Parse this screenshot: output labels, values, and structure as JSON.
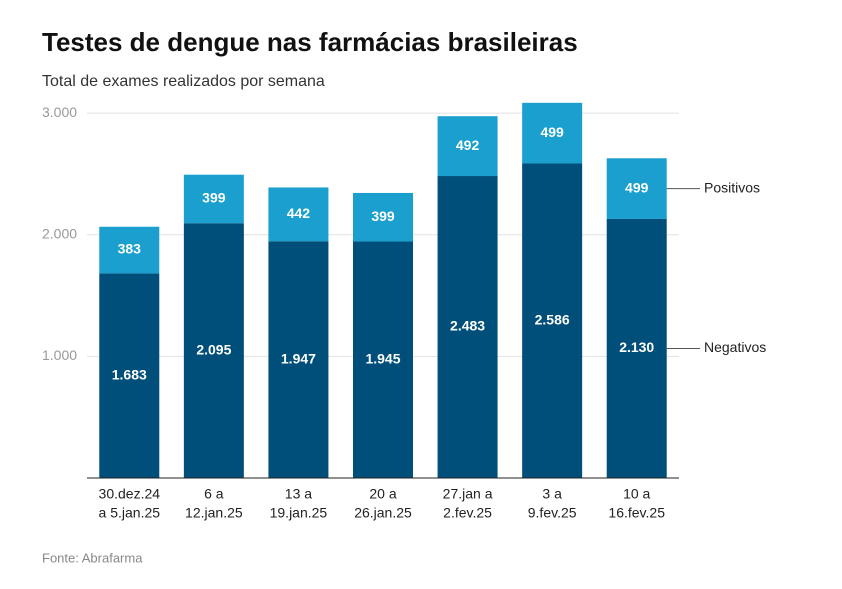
{
  "chart_data": {
    "type": "stacked_bar",
    "title": "Testes de dengue nas farmácias brasileiras",
    "subtitle": "Total de exames realizados por semana",
    "source": "Fonte: Abrafarma",
    "categories": [
      [
        "30.dez.24",
        "a 5.jan.25"
      ],
      [
        "6 a",
        "12.jan.25"
      ],
      [
        "13 a",
        "19.jan.25"
      ],
      [
        "20 a",
        "26.jan.25"
      ],
      [
        "27.jan a",
        "2.fev.25"
      ],
      [
        "3 a",
        "9.fev.25"
      ],
      [
        "10 a",
        "16.fev.25"
      ]
    ],
    "series": [
      {
        "name": "Negativos",
        "color": "#004f7a",
        "values": [
          1683,
          2095,
          1947,
          1945,
          2483,
          2586,
          2130
        ],
        "value_labels": [
          "1.683",
          "2.095",
          "1.947",
          "1.945",
          "2.483",
          "2.586",
          "2.130"
        ]
      },
      {
        "name": "Positivos",
        "color": "#1a9fce",
        "values": [
          383,
          399,
          442,
          399,
          492,
          499,
          499
        ],
        "value_labels": [
          "383",
          "399",
          "442",
          "399",
          "492",
          "499",
          "499"
        ]
      }
    ],
    "ylim": [
      0,
      3100
    ],
    "yticks": [
      {
        "value": 1000,
        "label": "1.000"
      },
      {
        "value": 2000,
        "label": "2.000"
      },
      {
        "value": 3000,
        "label": "3.000"
      }
    ],
    "grid": true
  }
}
